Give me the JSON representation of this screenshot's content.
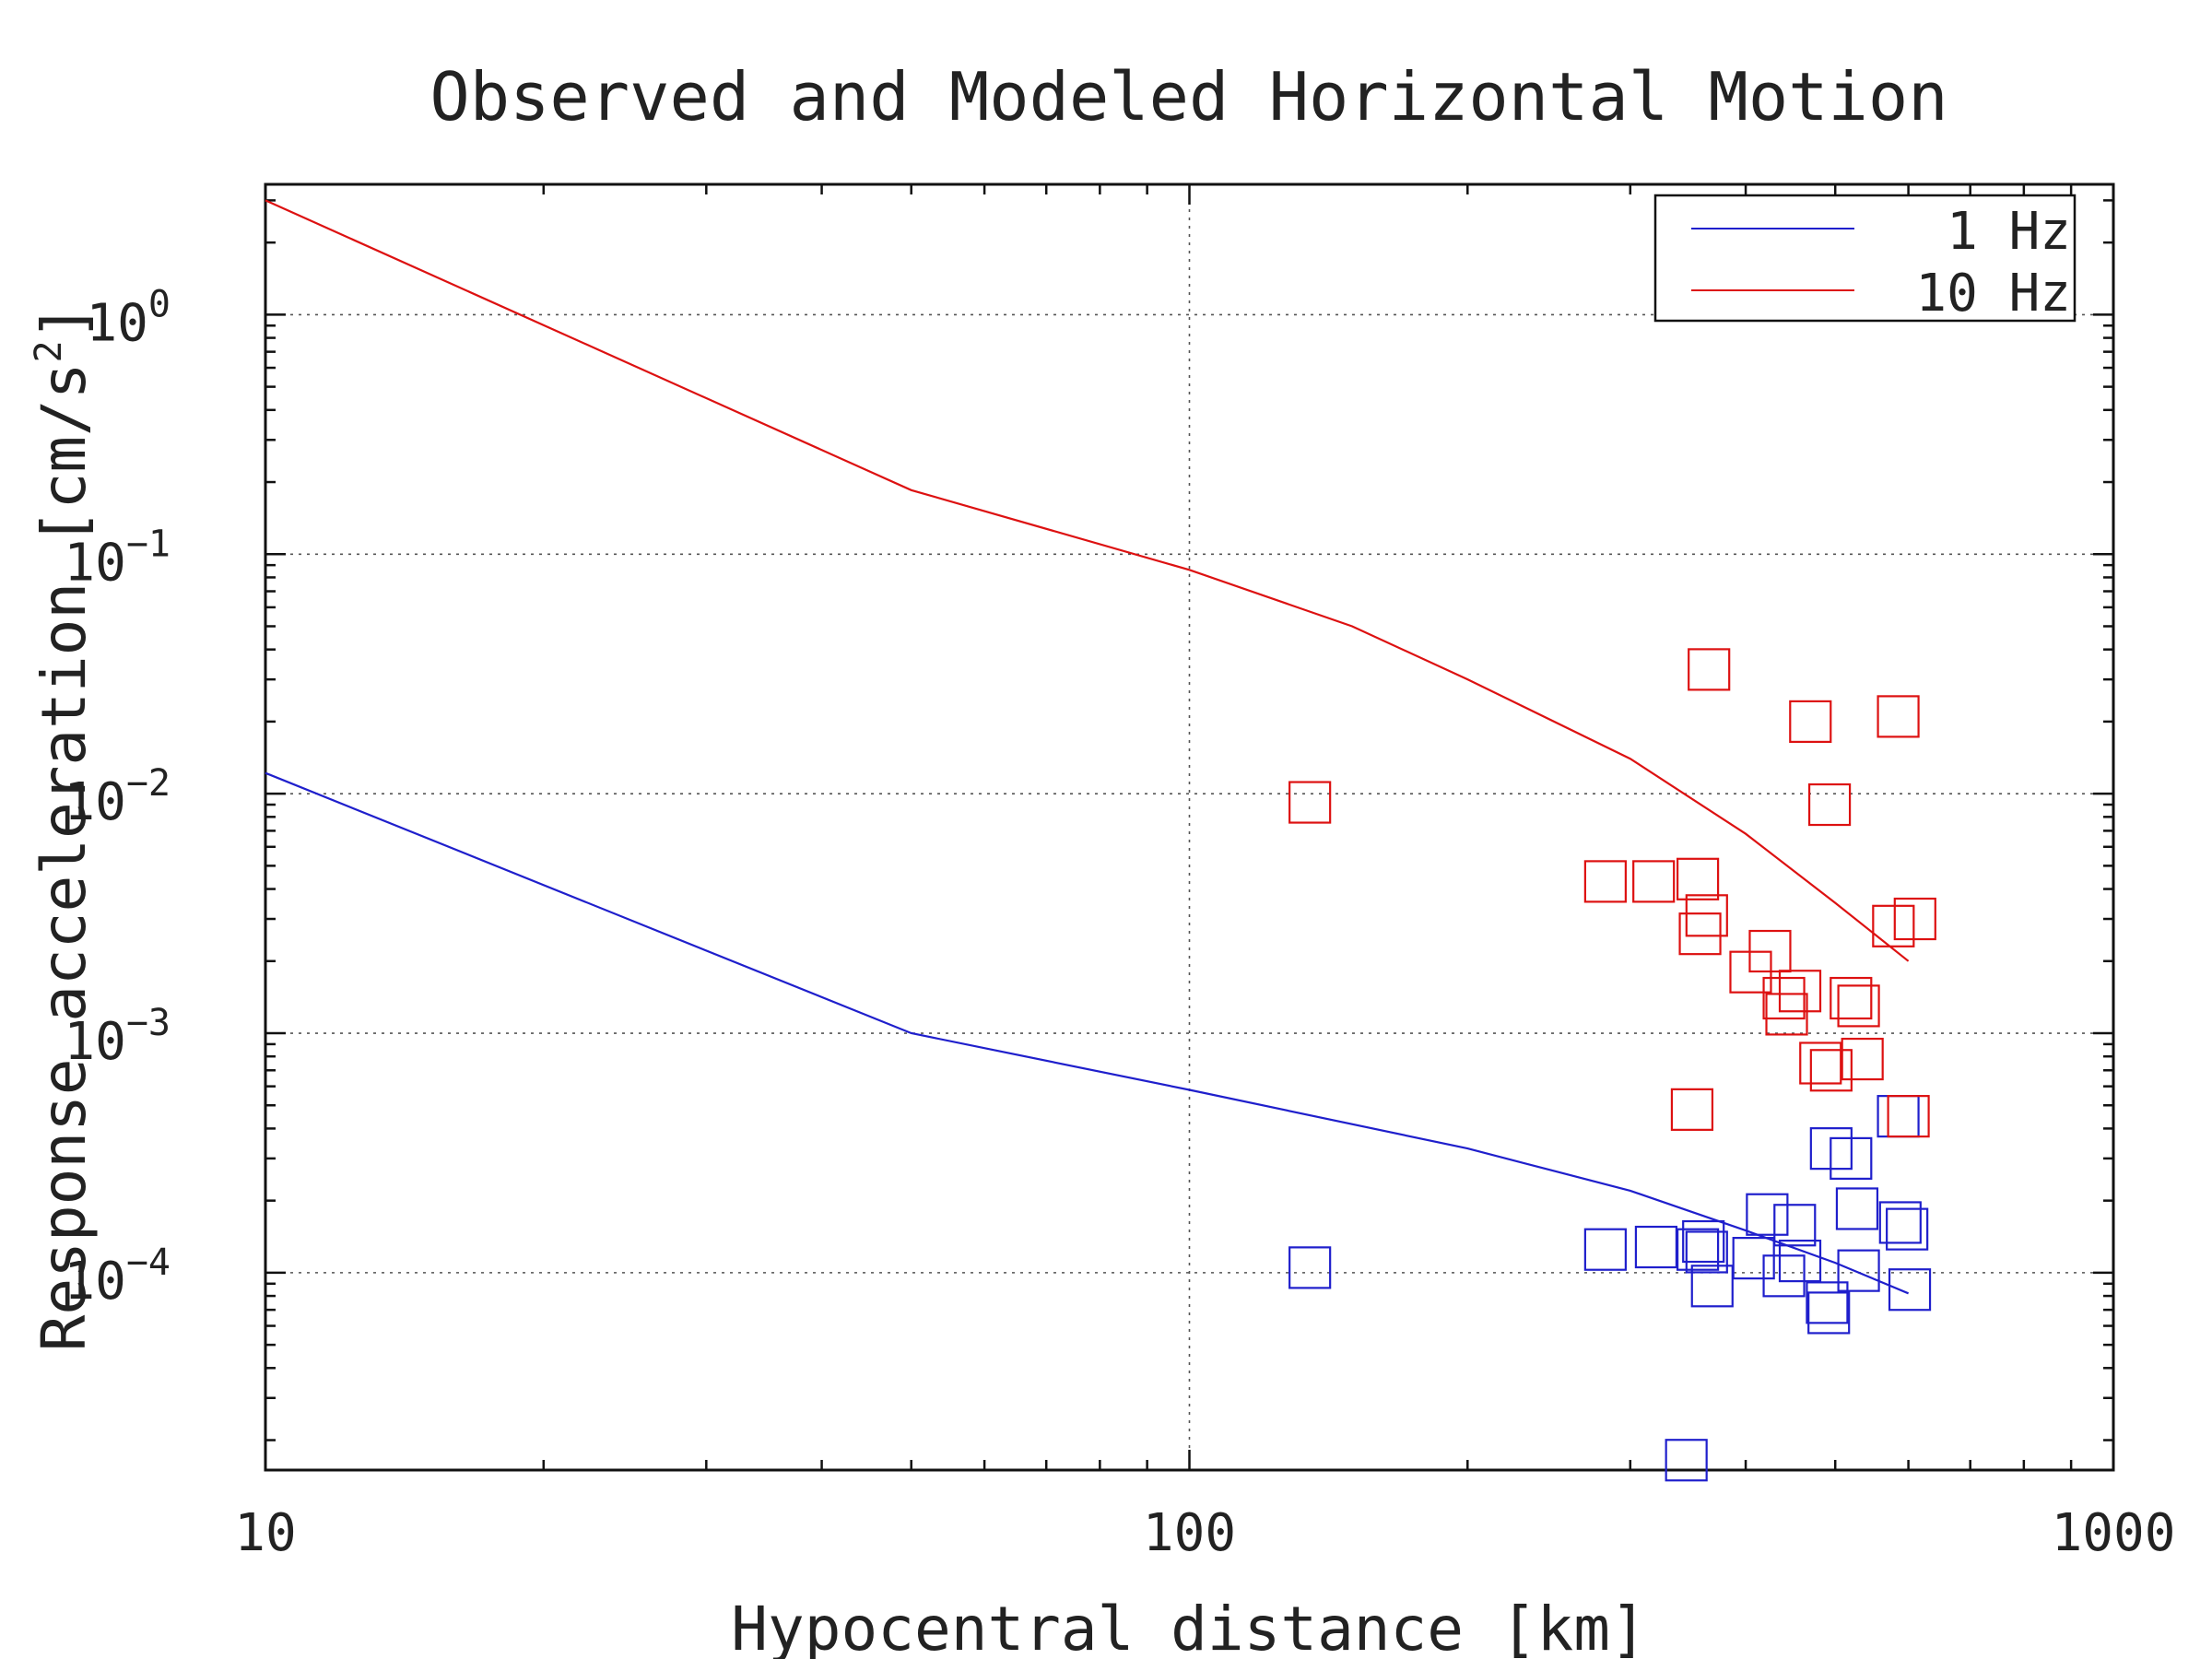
{
  "chart_data": {
    "type": "scatter",
    "title": "Observed and Modeled Horizontal Motion",
    "xlabel": "Hypocentral distance [km]",
    "ylabel": "Response acceleration [cm/s",
    "ylabel_superscript": "2",
    "ylabel_suffix": "]",
    "xscale": "log",
    "yscale": "log",
    "xlim": [
      10,
      1000
    ],
    "ylim": [
      1.5e-05,
      3.5
    ],
    "grid": true,
    "x_ticks": [
      {
        "value": 10,
        "label": "10"
      },
      {
        "value": 100,
        "label": "100"
      },
      {
        "value": 1000,
        "label": "1000"
      }
    ],
    "y_ticks": [
      {
        "value": 1,
        "base": "10",
        "exp": "0"
      },
      {
        "value": 0.1,
        "base": "10",
        "exp": "−1"
      },
      {
        "value": 0.01,
        "base": "10",
        "exp": "−2"
      },
      {
        "value": 0.001,
        "base": "10",
        "exp": "−3"
      },
      {
        "value": 0.0001,
        "base": "10",
        "exp": "−4"
      }
    ],
    "legend_position": "top-right",
    "series": [
      {
        "name": "1 Hz",
        "color": "#1f1fcc",
        "line": [
          [
            10,
            0.0122
          ],
          [
            50,
            0.001
          ],
          [
            100,
            0.00058
          ],
          [
            200,
            0.00033
          ],
          [
            300,
            0.00022
          ],
          [
            400,
            0.00015
          ],
          [
            500,
            0.00011
          ],
          [
            600,
            8.2e-05
          ]
        ],
        "points": [
          [
            135,
            0.000105
          ],
          [
            282,
            0.000125
          ],
          [
            320,
            0.000128
          ],
          [
            355,
            0.000125
          ],
          [
            360,
            0.000135
          ],
          [
            363,
            0.000122
          ],
          [
            368,
            8.8e-05
          ],
          [
            408,
            0.000115
          ],
          [
            422,
            0.000175
          ],
          [
            440,
            9.7e-05
          ],
          [
            452,
            0.000158
          ],
          [
            458,
            0.000112
          ],
          [
            490,
            7.5e-05
          ],
          [
            492,
            6.8e-05
          ],
          [
            495,
            0.00033
          ],
          [
            520,
            0.0003
          ],
          [
            528,
            0.000185
          ],
          [
            530,
            0.000102
          ],
          [
            585,
            0.00045
          ],
          [
            588,
            0.000162
          ],
          [
            598,
            0.000152
          ],
          [
            602,
            8.5e-05
          ],
          [
            345,
            1.65e-05
          ]
        ]
      },
      {
        "name": "10 Hz",
        "color": "#dd1111",
        "line": [
          [
            10,
            3.0
          ],
          [
            50,
            0.185
          ],
          [
            100,
            0.086
          ],
          [
            150,
            0.05
          ],
          [
            200,
            0.03
          ],
          [
            300,
            0.014
          ],
          [
            400,
            0.0068
          ],
          [
            500,
            0.0035
          ],
          [
            600,
            0.002
          ]
        ],
        "points": [
          [
            135,
            0.0092
          ],
          [
            282,
            0.0043
          ],
          [
            318,
            0.0043
          ],
          [
            350,
            0.00048
          ],
          [
            355,
            0.0044
          ],
          [
            357,
            0.0026
          ],
          [
            363,
            0.0031
          ],
          [
            365,
            0.033
          ],
          [
            405,
            0.0018
          ],
          [
            425,
            0.0022
          ],
          [
            440,
            0.0014
          ],
          [
            443,
            0.0012
          ],
          [
            458,
            0.0015
          ],
          [
            470,
            0.02
          ],
          [
            482,
            0.00075
          ],
          [
            493,
            0.009
          ],
          [
            495,
            0.0007
          ],
          [
            520,
            0.0014
          ],
          [
            530,
            0.0013
          ],
          [
            535,
            0.00078
          ],
          [
            578,
            0.0028
          ],
          [
            585,
            0.021
          ],
          [
            600,
            0.00045
          ],
          [
            610,
            0.003
          ]
        ]
      }
    ]
  }
}
